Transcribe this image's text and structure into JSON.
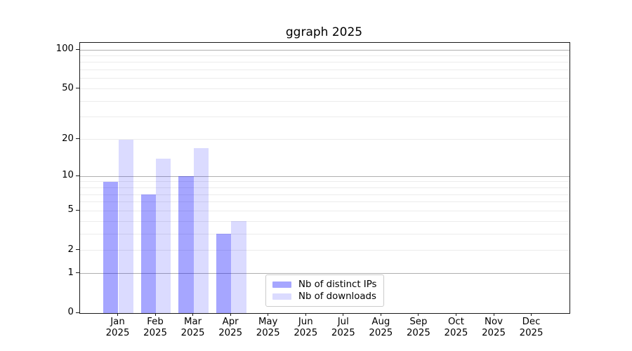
{
  "chart_data": {
    "type": "bar",
    "title": "ggraph 2025",
    "x_categories": [
      "Jan",
      "Feb",
      "Mar",
      "Apr",
      "May",
      "Jun",
      "Jul",
      "Aug",
      "Sep",
      "Oct",
      "Nov",
      "Dec"
    ],
    "x_sub_label": "2025",
    "series": [
      {
        "name": "Nb of distinct IPs",
        "color": "rgba(0,0,255,0.35)",
        "values": [
          9,
          7,
          10,
          3,
          0,
          0,
          0,
          0,
          0,
          0,
          0,
          0
        ]
      },
      {
        "name": "Nb of downloads",
        "color": "rgba(0,0,255,0.14)",
        "values": [
          20,
          14,
          17,
          4,
          0,
          0,
          0,
          0,
          0,
          0,
          0,
          0
        ]
      }
    ],
    "y_axis": {
      "scale": "log1p",
      "tick_values": [
        0,
        1,
        2,
        5,
        10,
        20,
        50,
        100
      ],
      "major_grid_values": [
        1,
        10,
        100
      ],
      "minor_grid_values": [
        2,
        3,
        4,
        5,
        6,
        7,
        8,
        9,
        20,
        30,
        40,
        50,
        60,
        70,
        80,
        90
      ],
      "max_value": 100
    },
    "legend_position": "lower center-right inside plot",
    "grid": true,
    "colors": {
      "major_grid": "#b0b0b0",
      "minor_grid": "#ececec",
      "axis_line": "#1a1a1a",
      "text": "#000000"
    }
  }
}
